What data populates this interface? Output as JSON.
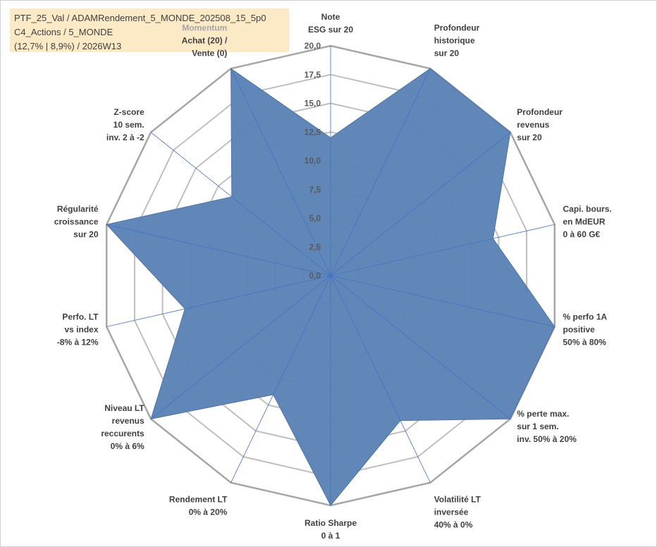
{
  "header": {
    "line1": "PTF_25_Val / ADAMRendement_5_MONDE_202508_15_5p0",
    "line2": "C4_Actions / 5_MONDE",
    "line3": "(12,7% | 8,9%) / 2026W13"
  },
  "momentum_label": "Momentum",
  "colors": {
    "fill": "#5b83b6",
    "grid": "#bfbfbf",
    "outer_grid": "#a6a6a6",
    "spoke": "#4472c4",
    "header_bg": "#fce9c6"
  },
  "chart_data": {
    "type": "radar",
    "title": "",
    "rmin": 0,
    "rmax": 20,
    "tick_values": [
      "0,0",
      "2,5",
      "5,0",
      "7,5",
      "10,0",
      "12,5",
      "15,0",
      "17,5",
      "20,0"
    ],
    "axes": [
      {
        "lines": [
          "Note",
          "ESG sur 20"
        ]
      },
      {
        "lines": [
          "Profondeur",
          "historique",
          "sur 20"
        ]
      },
      {
        "lines": [
          "Profondeur",
          "revenus",
          "sur 20"
        ]
      },
      {
        "lines": [
          "Capi. bours.",
          "en MdEUR",
          "0 à 60 G€"
        ]
      },
      {
        "lines": [
          "% perfo 1A",
          "positive",
          "50% à 80%"
        ]
      },
      {
        "lines": [
          "% perte max.",
          "sur 1 sem.",
          "inv. 50% à 20%"
        ]
      },
      {
        "lines": [
          "Volatilité LT",
          "inversée",
          "40% à 0%"
        ]
      },
      {
        "lines": [
          "Ratio Sharpe",
          "0 à 1"
        ]
      },
      {
        "lines": [
          "Rendement LT",
          "0% à 20%"
        ]
      },
      {
        "lines": [
          "Niveau LT",
          "revenus",
          "reccurents",
          "0% à 6%"
        ]
      },
      {
        "lines": [
          "Perfo. LT",
          "vs index",
          "-8% à 12%"
        ]
      },
      {
        "lines": [
          "Régularité",
          "croissance",
          "sur 20"
        ]
      },
      {
        "lines": [
          "Z-score",
          "10 sem.",
          "inv. 2 à -2"
        ]
      },
      {
        "lines": [
          "Achat (20) /",
          "Vente (0)"
        ]
      }
    ],
    "series": [
      {
        "name": "PTF_25_Val",
        "values": [
          12,
          20,
          20,
          14.5,
          20,
          20,
          14,
          20,
          11.5,
          20,
          13,
          20,
          11,
          20
        ]
      }
    ]
  }
}
